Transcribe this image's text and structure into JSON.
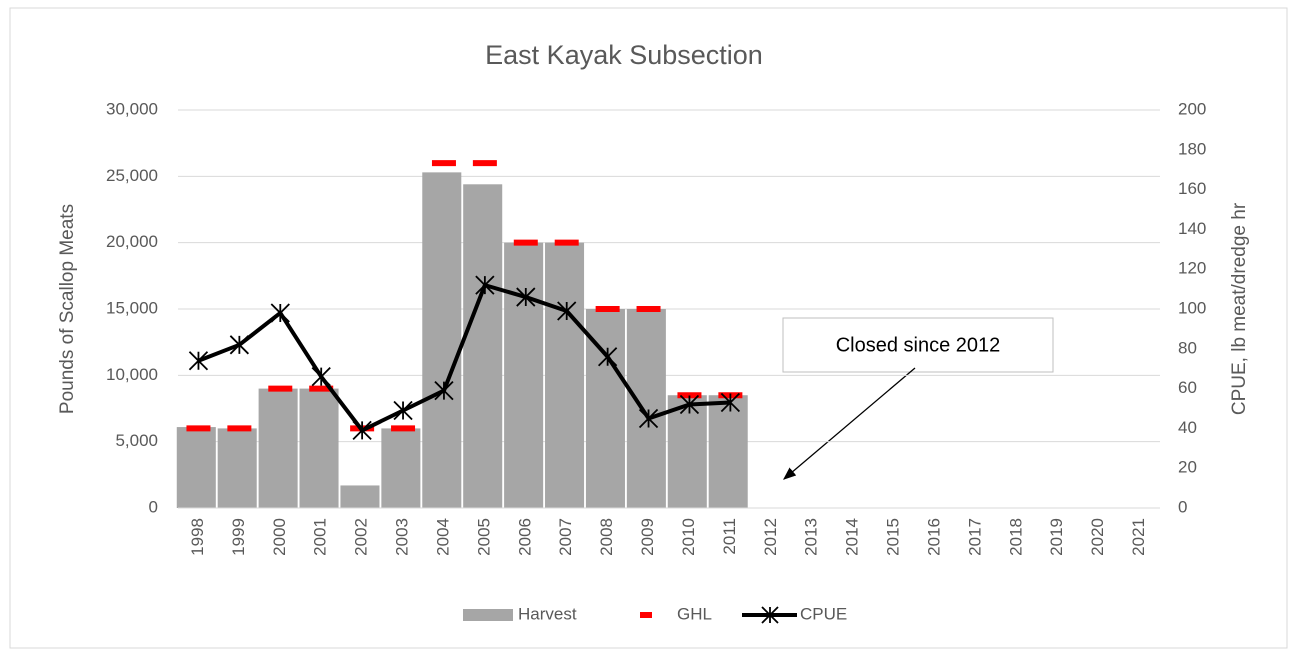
{
  "chart_data": {
    "type": "combo",
    "title": "East Kayak Subsection",
    "y_label": "Pounds of Scallop Meats",
    "y2_label": "CPUE, lb meat/dredge hr",
    "annotation": "Closed since 2012",
    "categories": [
      "1998",
      "1999",
      "2000",
      "2001",
      "2002",
      "2003",
      "2004",
      "2005",
      "2006",
      "2007",
      "2008",
      "2009",
      "2010",
      "2011",
      "2012",
      "2013",
      "2014",
      "2015",
      "2016",
      "2017",
      "2018",
      "2019",
      "2020",
      "2021"
    ],
    "series": [
      {
        "name": "Harvest",
        "type": "bar",
        "color": "#a6a6a6",
        "values": [
          6100,
          6000,
          9000,
          9000,
          1700,
          6000,
          25300,
          24400,
          20000,
          20000,
          15000,
          15000,
          8500,
          8500,
          null,
          null,
          null,
          null,
          null,
          null,
          null,
          null,
          null,
          null
        ]
      },
      {
        "name": "GHL",
        "type": "dash",
        "color": "#ff0000",
        "values": [
          6000,
          6000,
          9000,
          9000,
          6000,
          6000,
          26000,
          26000,
          20000,
          20000,
          15000,
          15000,
          8500,
          8500,
          null,
          null,
          null,
          null,
          null,
          null,
          null,
          null,
          null,
          null
        ]
      },
      {
        "name": "CPUE",
        "type": "line",
        "axis": "y2",
        "color": "#000000",
        "values": [
          74,
          82,
          98,
          66,
          39,
          49,
          59,
          112,
          106,
          99,
          76,
          45,
          52,
          53,
          null,
          null,
          null,
          null,
          null,
          null,
          null,
          null,
          null,
          null
        ]
      }
    ],
    "ylim": [
      0,
      30000
    ],
    "yticks": [
      0,
      {
        "value": 5000,
        "label": "5,000"
      },
      {
        "value": 10000,
        "label": "10,000"
      },
      {
        "value": 15000,
        "label": "15,000"
      },
      {
        "value": 20000,
        "label": "20,000"
      },
      {
        "value": 25000,
        "label": "25,000"
      },
      {
        "value": 30000,
        "label": "30,000"
      }
    ],
    "y2lim": [
      0,
      200
    ],
    "y2ticks": [
      0,
      20,
      40,
      60,
      80,
      100,
      120,
      140,
      160,
      180,
      200
    ],
    "grid": true
  }
}
